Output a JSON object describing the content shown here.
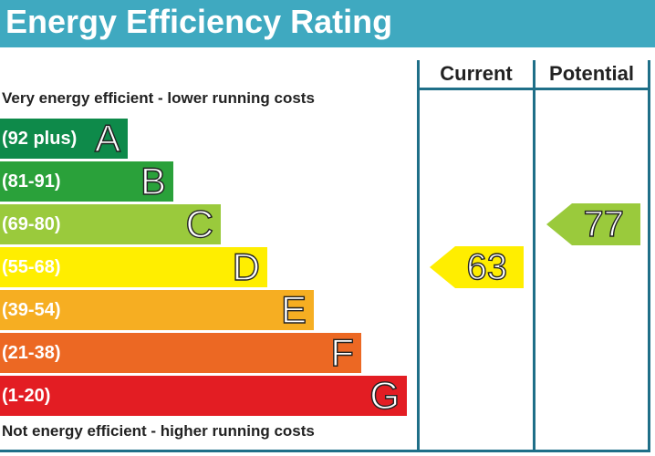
{
  "header": {
    "title": "Energy Efficiency Rating",
    "color": "#3fa9c0"
  },
  "captions": {
    "top": "Very energy efficient - lower running costs",
    "bottom": "Not energy efficient - higher running costs"
  },
  "columns": {
    "current": "Current",
    "potential": "Potential"
  },
  "chart_data": {
    "type": "bar",
    "title": "Energy Efficiency Rating",
    "bands": [
      {
        "letter": "A",
        "range": "(92 plus)",
        "color": "#0e8a4a"
      },
      {
        "letter": "B",
        "range": "(81-91)",
        "color": "#2aa13a"
      },
      {
        "letter": "C",
        "range": "(69-80)",
        "color": "#9aca3c"
      },
      {
        "letter": "D",
        "range": "(55-68)",
        "color": "#ffee00"
      },
      {
        "letter": "E",
        "range": "(39-54)",
        "color": "#f6ae22"
      },
      {
        "letter": "F",
        "range": "(21-38)",
        "color": "#ec6823"
      },
      {
        "letter": "G",
        "range": "(1-20)",
        "color": "#e31d23"
      }
    ],
    "ratings": {
      "current": {
        "value": "63",
        "band": "D",
        "color": "#ffee00"
      },
      "potential": {
        "value": "77",
        "band": "C",
        "color": "#9aca3c"
      }
    }
  }
}
